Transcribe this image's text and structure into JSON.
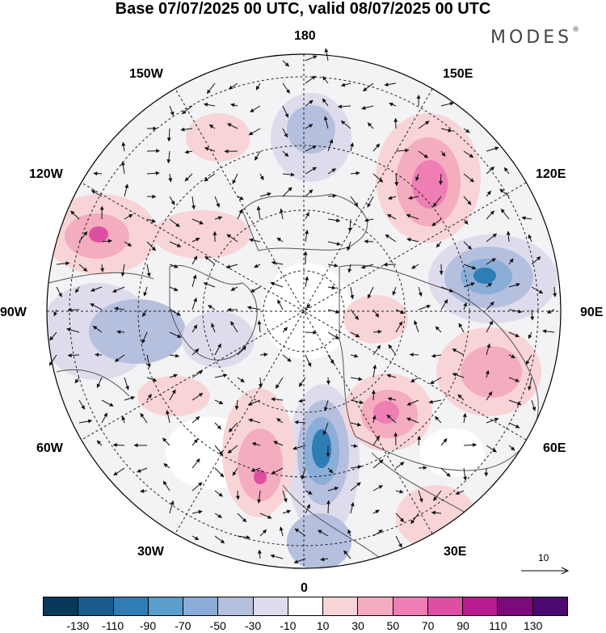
{
  "title": "Base 07/07/2025 00 UTC, valid 08/07/2025 00 UTC",
  "brand": {
    "name": "MODES",
    "mark": "®"
  },
  "map": {
    "projection": "north polar stereographic",
    "longitude_labels": {
      "top": "180",
      "top_right": "150E",
      "upper_right": "120E",
      "right": "90E",
      "lower_right": "60E",
      "bottom_right": "30E",
      "bottom": "0",
      "bottom_left": "30W",
      "lower_left": "60W",
      "left": "90W",
      "upper_left": "120W",
      "top_left": "150W"
    },
    "reference_vector": {
      "label": "10"
    },
    "colors": {
      "coastline": "#555555",
      "graticule": "#222222",
      "vector": "#111111"
    }
  },
  "colorbar": {
    "ticks": [
      "-130",
      "-110",
      "-90",
      "-70",
      "-50",
      "-30",
      "-10",
      "10",
      "30",
      "50",
      "70",
      "90",
      "110",
      "130"
    ],
    "colors": [
      "#08385c",
      "#1a5d8c",
      "#2e7db5",
      "#5b9dcb",
      "#8aaed7",
      "#b5bfde",
      "#dedcec",
      "#ffffff",
      "#f8d4d6",
      "#f4acbf",
      "#ee7eb4",
      "#de4fa4",
      "#b91c8f",
      "#7c0a7a",
      "#4a0870"
    ]
  }
}
